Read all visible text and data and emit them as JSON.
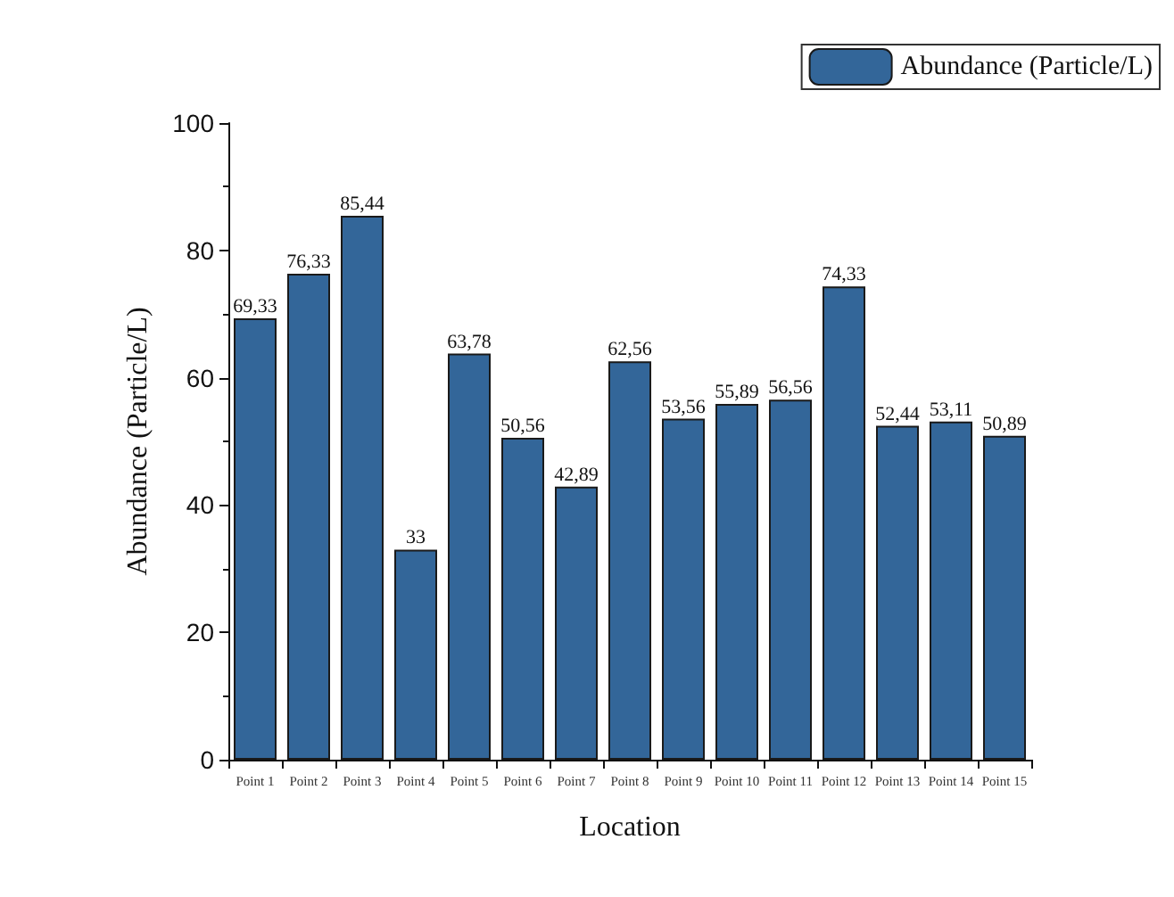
{
  "chart_data": {
    "type": "bar",
    "xlabel": "Location",
    "ylabel": "Abundance (Particle/L)",
    "categories": [
      "Point 1",
      "Point 2",
      "Point 3",
      "Point 4",
      "Point 5",
      "Point 6",
      "Point 7",
      "Point 8",
      "Point 9",
      "Point 10",
      "Point 11",
      "Point 12",
      "Point 13",
      "Point 14",
      "Point 15"
    ],
    "series": [
      {
        "name": "Abundance (Particle/L)",
        "color": "#336699",
        "values": [
          69.33,
          76.33,
          85.44,
          33,
          63.78,
          50.56,
          42.89,
          62.56,
          53.56,
          55.89,
          56.56,
          74.33,
          52.44,
          53.11,
          50.89
        ],
        "value_labels": [
          "69,33",
          "76,33",
          "85,44",
          "33",
          "63,78",
          "50,56",
          "42,89",
          "62,56",
          "53,56",
          "55,89",
          "56,56",
          "74,33",
          "52,44",
          "53,11",
          "50,89"
        ]
      }
    ],
    "ylim": [
      0,
      100
    ],
    "yticks": [
      0,
      20,
      40,
      60,
      80,
      100
    ],
    "grid": false,
    "legend": "top right"
  }
}
